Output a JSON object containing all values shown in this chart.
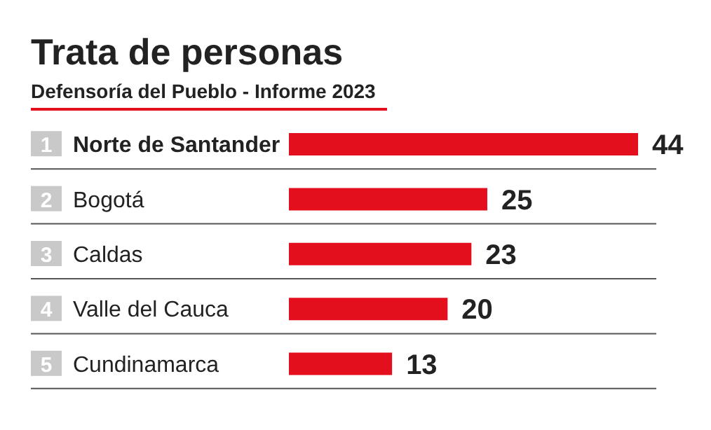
{
  "chart_data": {
    "type": "bar",
    "orientation": "horizontal",
    "title": "Trata de personas",
    "subtitle": "Defensoría del Pueblo - Informe 2023",
    "categories": [
      "Norte de Santander",
      "Bogotá",
      "Caldas",
      "Valle del Cauca",
      "Cundinamarca"
    ],
    "values": [
      44,
      25,
      23,
      20,
      13
    ],
    "color": "#e30f1c",
    "xlim": [
      0,
      44
    ],
    "tick_labels": false,
    "data_labels": true,
    "annotations": [
      "1",
      "2",
      "3",
      "4",
      "5"
    ]
  }
}
